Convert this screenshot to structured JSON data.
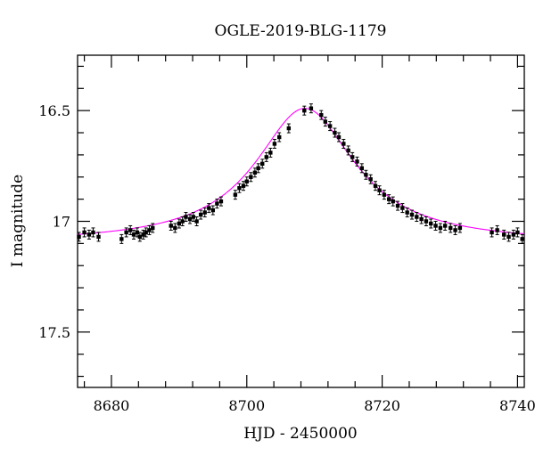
{
  "chart_data": {
    "type": "scatter",
    "title": "OGLE-2019-BLG-1179",
    "xlabel": "HJD - 2450000",
    "ylabel": "I magnitude",
    "xlim": [
      8675,
      8741
    ],
    "ylim": [
      16.25,
      17.75
    ],
    "y_inverted": true,
    "grid": false,
    "x_ticks": [
      8680,
      8700,
      8720,
      8740
    ],
    "x_tick_labels": [
      "8680",
      "8700",
      "8720",
      "8740"
    ],
    "y_ticks": [
      16.5,
      17,
      17.5
    ],
    "y_tick_labels": [
      "16.5",
      "17",
      "17.5"
    ],
    "marker_color": "#000000",
    "model_color": "#ff00ff",
    "model": {
      "t0": 8708.6,
      "peak_mag": 16.49,
      "baseline_mag": 17.1,
      "width": 9.0
    },
    "series": [
      {
        "type": "scatter",
        "x": [
          8675.2,
          8676.0,
          8676.7,
          8677.3,
          8678.1,
          8681.5,
          8682.2,
          8682.8,
          8683.3,
          8683.8,
          8684.2,
          8684.7,
          8685.1,
          8685.6,
          8686.1,
          8688.8,
          8689.4,
          8690.0,
          8690.5,
          8691.0,
          8691.6,
          8692.1,
          8692.6,
          8693.2,
          8693.8,
          8694.4,
          8695.0,
          8695.6,
          8696.2,
          8698.3,
          8698.9,
          8699.5,
          8700.0,
          8700.6,
          8701.2,
          8701.7,
          8702.3,
          8702.9,
          8703.5,
          8704.1,
          8704.8,
          8706.2,
          8708.5,
          8709.5,
          8711.0,
          8711.6,
          8712.3,
          8713.0,
          8713.6,
          8714.3,
          8715.0,
          8715.6,
          8716.3,
          8717.0,
          8717.6,
          8718.3,
          8719.0,
          8719.6,
          8720.3,
          8721.0,
          8721.6,
          8722.3,
          8723.0,
          8723.7,
          8724.4,
          8725.1,
          8725.8,
          8726.5,
          8727.2,
          8727.9,
          8728.6,
          8729.3,
          8730.1,
          8730.8,
          8731.5,
          8736.2,
          8737.0,
          8738.0,
          8738.7,
          8739.4,
          8740.0,
          8740.7
        ],
        "y": [
          17.07,
          17.05,
          17.06,
          17.05,
          17.07,
          17.08,
          17.05,
          17.04,
          17.06,
          17.05,
          17.07,
          17.06,
          17.05,
          17.04,
          17.03,
          17.02,
          17.03,
          17.01,
          17.0,
          16.98,
          16.99,
          16.98,
          17.0,
          16.97,
          16.96,
          16.94,
          16.95,
          16.92,
          16.91,
          16.88,
          16.85,
          16.84,
          16.82,
          16.8,
          16.78,
          16.76,
          16.74,
          16.71,
          16.69,
          16.65,
          16.62,
          16.58,
          16.5,
          16.49,
          16.52,
          16.55,
          16.57,
          16.6,
          16.62,
          16.65,
          16.68,
          16.71,
          16.73,
          16.76,
          16.79,
          16.81,
          16.84,
          16.86,
          16.88,
          16.9,
          16.91,
          16.93,
          16.94,
          16.96,
          16.97,
          16.98,
          16.99,
          17.0,
          17.01,
          17.02,
          17.03,
          17.02,
          17.03,
          17.04,
          17.03,
          17.05,
          17.04,
          17.06,
          17.07,
          17.06,
          17.05,
          17.08
        ]
      },
      {
        "type": "line",
        "name": "model"
      }
    ]
  }
}
